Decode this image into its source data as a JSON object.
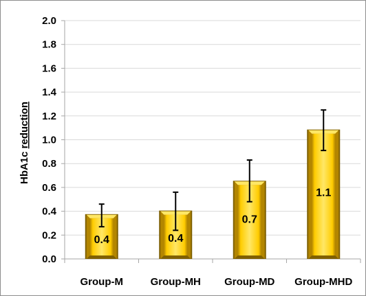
{
  "chart_data": {
    "type": "bar",
    "categories": [
      "Group-M",
      "Group-MH",
      "Group-MD",
      "Group-MHD"
    ],
    "values": [
      0.37,
      0.4,
      0.65,
      1.08
    ],
    "error_low": [
      0.27,
      0.24,
      0.48,
      0.91
    ],
    "error_high": [
      0.46,
      0.56,
      0.83,
      1.25
    ],
    "data_labels": [
      "0.4",
      "0.4",
      "0.7",
      "1.1"
    ],
    "yticks": [
      "2.0",
      "1.8",
      "1.6",
      "1.4",
      "1.2",
      "1.0",
      "0.8",
      "0.6",
      "0.4",
      "0.2",
      "0.0"
    ],
    "ylabel_prefix": "HbA1c ",
    "ylabel_underlined": "reduction",
    "xlabel": "",
    "ylim": [
      0,
      2.0
    ],
    "grid": true,
    "colors": {
      "bar_face": "#ffcc00",
      "bar_highlight": "#ffe766",
      "bar_shadow": "#b38600",
      "bar_edge": "#7f6000",
      "grid": "#d9d9d9",
      "axis": "#a6a6a6",
      "error_bar": "#000000"
    }
  }
}
